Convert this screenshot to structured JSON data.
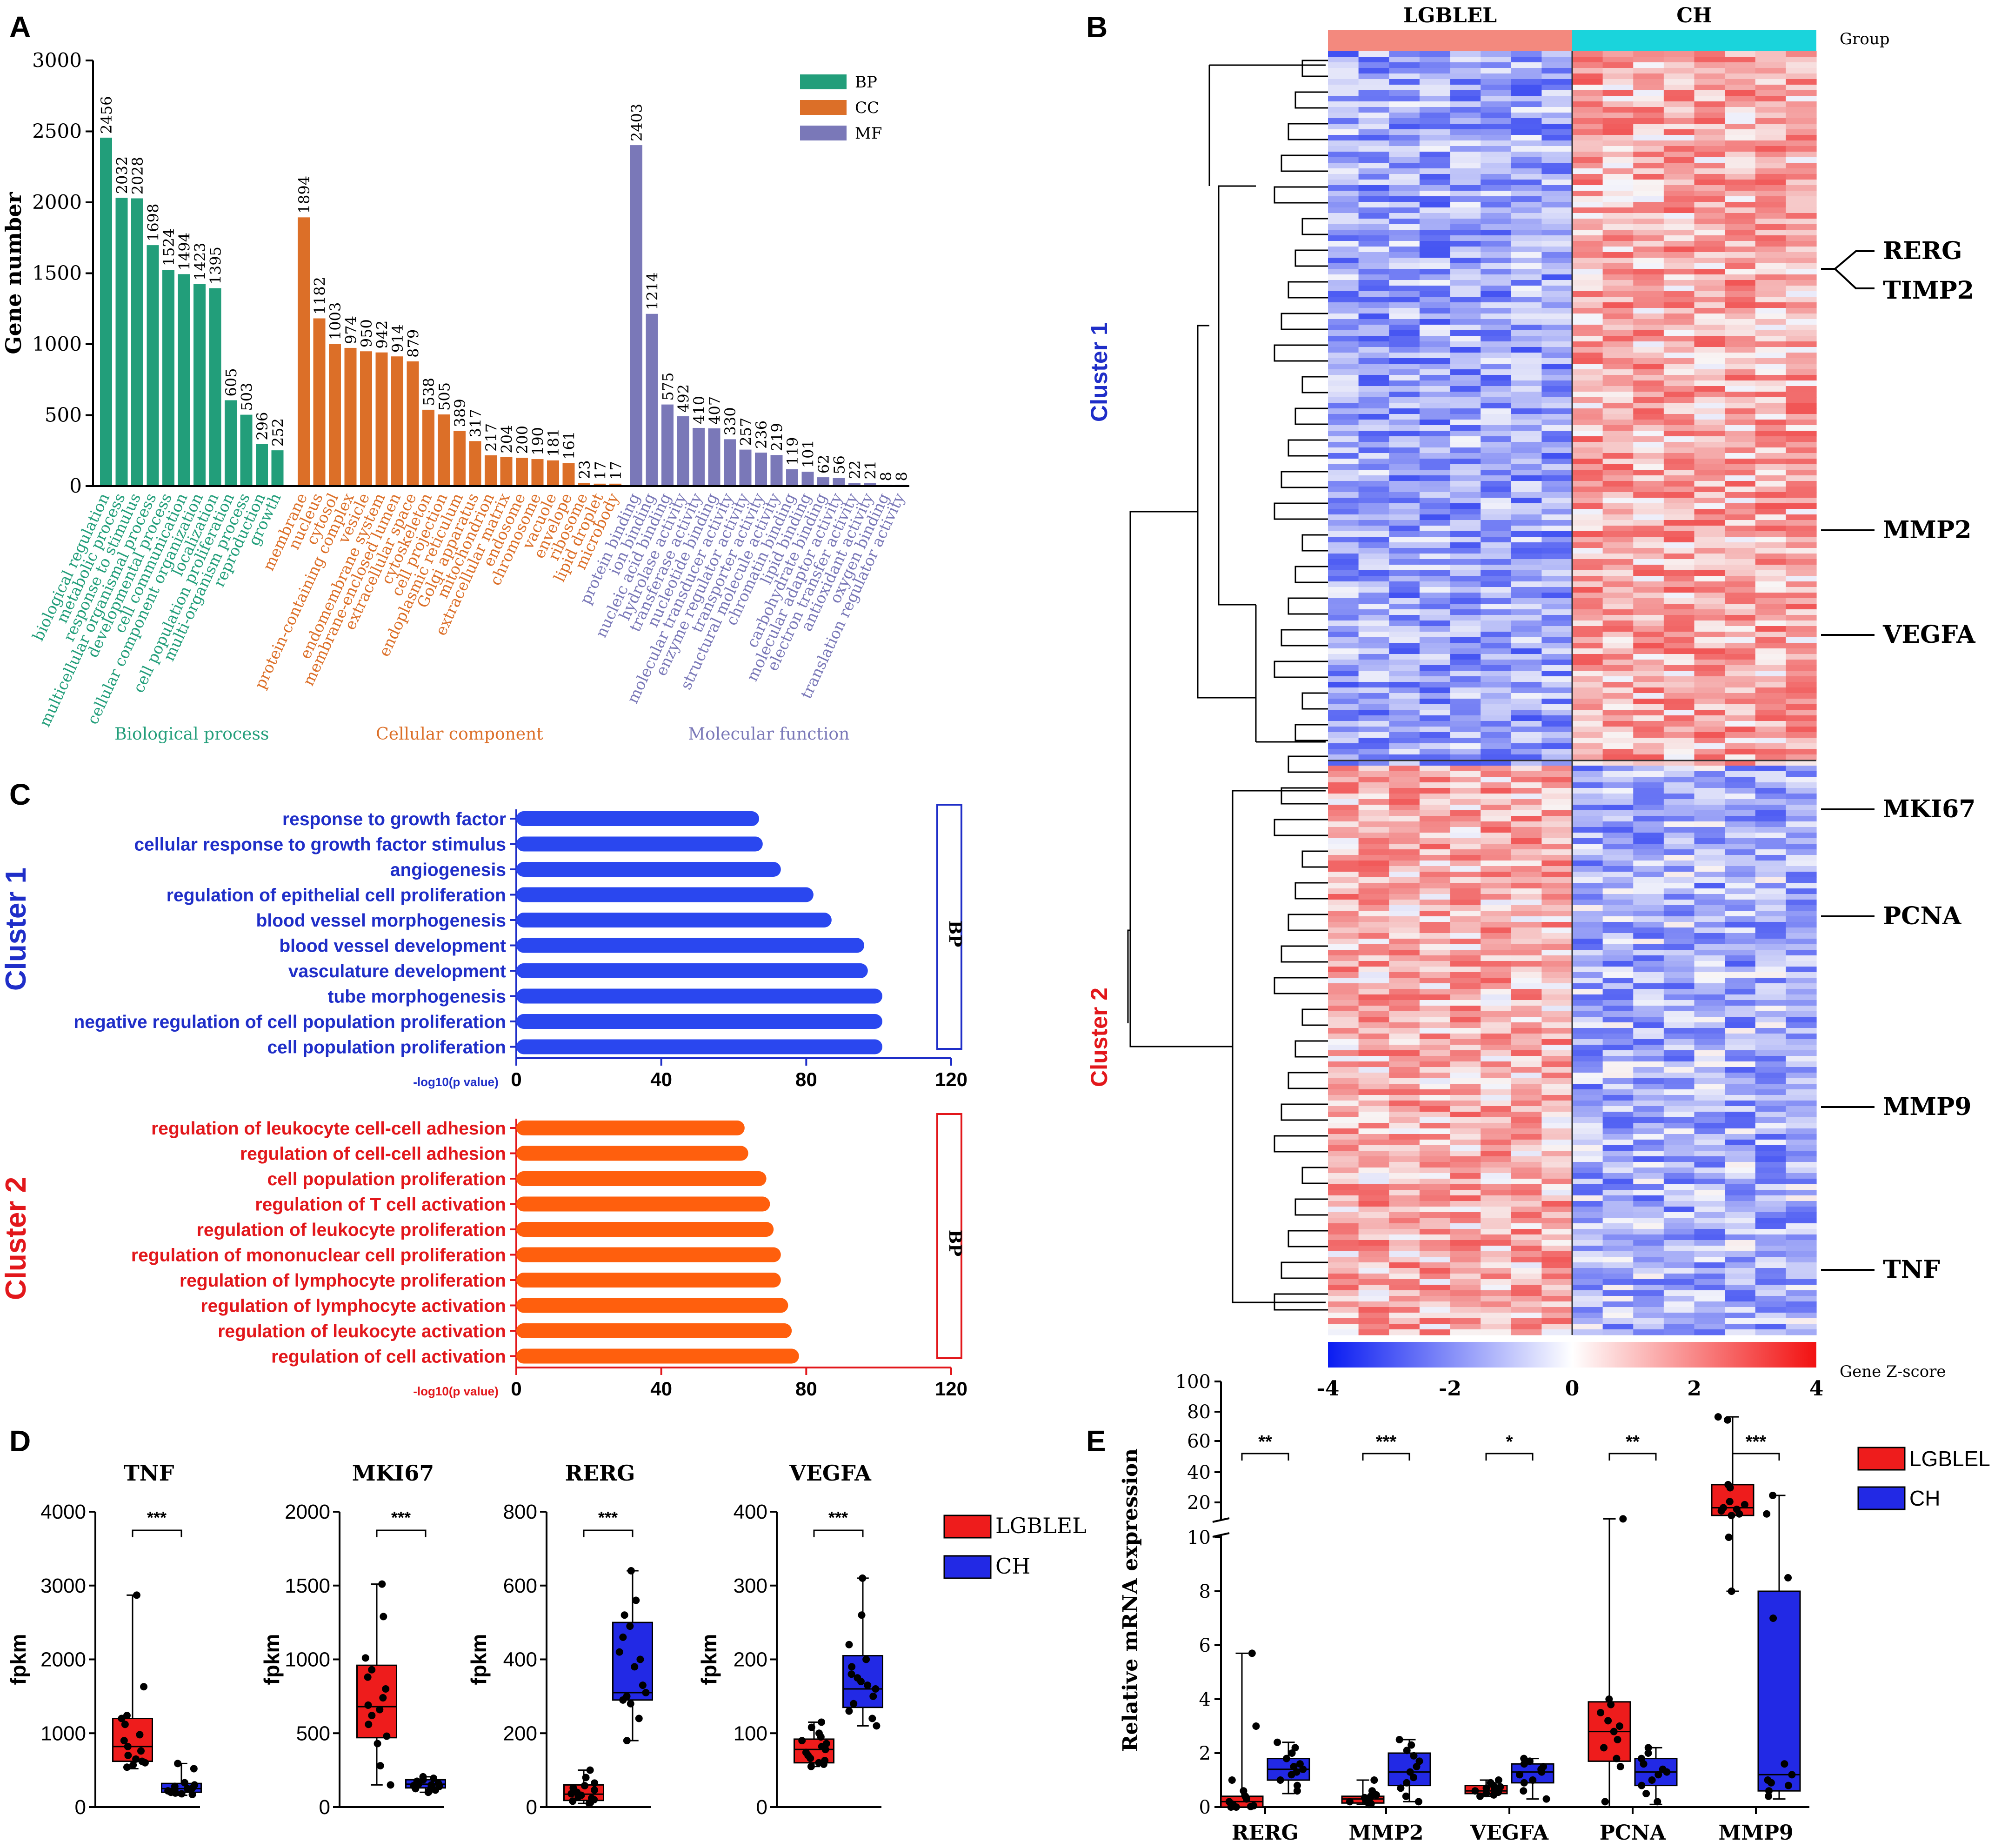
{
  "panel_labels": {
    "A": "A",
    "B": "B",
    "C": "C",
    "D": "D",
    "E": "E"
  },
  "colors": {
    "bp": "#229e7a",
    "cc": "#dc6f28",
    "mf": "#7a78b8",
    "cluster1": "#1f2ec8",
    "cluster2": "#e2171b",
    "bar1": "#2a47ef",
    "bar2": "#ff5f0d",
    "lgblel": "#ee1c1c",
    "ch": "#2229e5",
    "group_lgblel": "#f3897e",
    "group_ch": "#1ad4dc"
  },
  "chart_data": [
    {
      "panel": "A",
      "type": "bar",
      "ylabel": "Gene number",
      "ylim": [
        0,
        3000
      ],
      "yticks": [
        "0",
        "500",
        "1000",
        "1500",
        "2000",
        "2500",
        "3000"
      ],
      "legend": [
        "BP",
        "CC",
        "MF"
      ],
      "groups": [
        {
          "key": "bp",
          "name": "Biological process",
          "categories": [
            "biological regulation",
            "metabolic process",
            "response to stimulus",
            "multicellular organismal process",
            "developmental process",
            "cell communication",
            "cellular component organization",
            "localization",
            "cell population proliferation",
            "multi-organism process",
            "reproduction",
            "growth"
          ],
          "values": [
            2456,
            2032,
            2028,
            1698,
            1524,
            1494,
            1423,
            1395,
            605,
            503,
            296,
            252
          ]
        },
        {
          "key": "cc",
          "name": "Cellular component",
          "categories": [
            "membrane",
            "nucleus",
            "cytosol",
            "protein-containing complex",
            "vesicle",
            "endomembrane system",
            "membrane-enclosed lumen",
            "extracellular space",
            "cytoskeleton",
            "cell projection",
            "endoplasmic reticulum",
            "Golgi apparatus",
            "mitochondrion",
            "extracellular matrix",
            "endosome",
            "chromosome",
            "vacuole",
            "envelope",
            "ribosome",
            "lipid droplet",
            "microbody"
          ],
          "values": [
            1894,
            1182,
            1003,
            974,
            950,
            942,
            914,
            879,
            538,
            505,
            389,
            317,
            217,
            204,
            200,
            190,
            181,
            161,
            23,
            17,
            17
          ]
        },
        {
          "key": "mf",
          "name": "Molecular function",
          "categories": [
            "protein binding",
            "ion binding",
            "nucleic acid binding",
            "hydrolase activity",
            "transferase activity",
            "nucleotide binding",
            "molecular transducer activity",
            "enzyme regulator activity",
            "transporter activity",
            "structural molecule activity",
            "chromatin binding",
            "lipid binding",
            "carbohydrate binding",
            "molecular adaptor activity",
            "electron transfer activity",
            "antioxidant activity",
            "oxygen binding",
            "translation regulator activity"
          ],
          "values": [
            2403,
            1214,
            575,
            492,
            410,
            407,
            330,
            257,
            236,
            219,
            119,
            101,
            62,
            56,
            22,
            21,
            8,
            8
          ]
        }
      ]
    },
    {
      "panel": "B",
      "type": "heatmap",
      "groups": [
        "LGBLEL",
        "CH"
      ],
      "group_label": "Group",
      "clusters": [
        "Cluster 1",
        "Cluster 2"
      ],
      "genes": [
        "RERG",
        "TIMP2",
        "MMP2",
        "VEGFA",
        "MKI67",
        "PCNA",
        "MMP9",
        "TNF"
      ],
      "colorbar_label": "Gene Z-score",
      "colorbar_ticks": [
        "-4",
        "-2",
        "0",
        "2",
        "4"
      ],
      "zlim": [
        -4,
        4
      ]
    },
    {
      "panel": "C",
      "type": "bar",
      "orientation": "horizontal",
      "xlabel": "-log10(p value)",
      "xlim": [
        0,
        120
      ],
      "xticks": [
        "0",
        "40",
        "80",
        "120"
      ],
      "facet_label": "BP",
      "clusters": [
        {
          "name": "Cluster 1",
          "terms": [
            "response to growth factor",
            "cellular response to growth factor stimulus",
            "angiogenesis",
            "regulation of epithelial cell proliferation",
            "blood vessel morphogenesis",
            "blood vessel development",
            "vasculature development",
            "tube morphogenesis",
            "negative regulation of cell population proliferation",
            "cell population proliferation"
          ],
          "values": [
            67,
            68,
            73,
            82,
            87,
            96,
            97,
            101,
            101,
            101
          ]
        },
        {
          "name": "Cluster 2",
          "terms": [
            "regulation of leukocyte cell-cell adhesion",
            "regulation of cell-cell adhesion",
            "cell population proliferation",
            "regulation of T cell activation",
            "regulation of leukocyte proliferation",
            "regulation of mononuclear cell proliferation",
            "regulation of lymphocyte proliferation",
            "regulation of lymphocyte activation",
            "regulation of leukocyte activation",
            "regulation of cell activation"
          ],
          "values": [
            63,
            64,
            69,
            70,
            71,
            73,
            73,
            75,
            76,
            78
          ]
        }
      ]
    },
    {
      "panel": "D",
      "type": "box",
      "ylabel": "fpkm",
      "legend": [
        "LGBLEL",
        "CH"
      ],
      "plots": [
        {
          "title": "TNF",
          "ylim": [
            0,
            4000
          ],
          "yticks": [
            "0",
            "1000",
            "2000",
            "3000",
            "4000"
          ],
          "sig": "***",
          "LGBLEL": {
            "min": 520,
            "q1": 620,
            "median": 820,
            "q3": 1200,
            "max": 2870,
            "points": [
              2870,
              1630,
              1240,
              1200,
              1120,
              980,
              900,
              820,
              760,
              700,
              650,
              620,
              600,
              570,
              540
            ]
          },
          "CH": {
            "min": 160,
            "q1": 200,
            "median": 250,
            "q3": 320,
            "max": 590,
            "points": [
              590,
              520,
              330,
              300,
              280,
              260,
              250,
              240,
              230,
              220,
              210,
              200,
              190,
              180,
              170
            ]
          }
        },
        {
          "title": "MKI67",
          "ylim": [
            0,
            2000
          ],
          "yticks": [
            "0",
            "500",
            "1000",
            "1500",
            "2000"
          ],
          "sig": "***",
          "LGBLEL": {
            "min": 150,
            "q1": 470,
            "median": 680,
            "q3": 960,
            "max": 1510,
            "points": [
              1510,
              1290,
              1010,
              930,
              880,
              800,
              740,
              690,
              660,
              620,
              560,
              480,
              430,
              280,
              150
            ]
          },
          "CH": {
            "min": 100,
            "q1": 130,
            "median": 155,
            "q3": 185,
            "max": 205,
            "points": [
              205,
              195,
              185,
              175,
              170,
              160,
              155,
              150,
              145,
              140,
              135,
              125,
              115,
              105,
              100
            ]
          }
        },
        {
          "title": "RERG",
          "ylim": [
            0,
            800
          ],
          "yticks": [
            "0",
            "200",
            "400",
            "600",
            "800"
          ],
          "sig": "***",
          "LGBLEL": {
            "min": 10,
            "q1": 18,
            "median": 35,
            "q3": 60,
            "max": 100,
            "points": [
              100,
              80,
              65,
              58,
              52,
              46,
              40,
              36,
              32,
              28,
              24,
              20,
              16,
              12,
              10
            ]
          },
          "CH": {
            "min": 180,
            "q1": 290,
            "median": 310,
            "q3": 500,
            "max": 640,
            "points": [
              640,
              560,
              520,
              490,
              460,
              420,
              400,
              380,
              330,
              310,
              300,
              290,
              280,
              240,
              180
            ]
          }
        },
        {
          "title": "VEGFA",
          "ylim": [
            0,
            400
          ],
          "yticks": [
            "0",
            "100",
            "200",
            "300",
            "400"
          ],
          "sig": "***",
          "LGBLEL": {
            "min": 55,
            "q1": 60,
            "median": 78,
            "q3": 92,
            "max": 115,
            "points": [
              115,
              108,
              100,
              95,
              90,
              86,
              82,
              78,
              74,
              70,
              66,
              63,
              60,
              58,
              55
            ]
          },
          "CH": {
            "min": 110,
            "q1": 135,
            "median": 160,
            "q3": 205,
            "max": 310,
            "points": [
              310,
              260,
              220,
              200,
              190,
              180,
              175,
              170,
              165,
              160,
              150,
              140,
              130,
              120,
              110
            ]
          }
        }
      ]
    },
    {
      "panel": "E",
      "type": "box",
      "ylabel": "Relative mRNA expression",
      "yticks_lower": [
        "0",
        "2",
        "4",
        "6",
        "8",
        "10"
      ],
      "yticks_upper": [
        "20",
        "40",
        "60",
        "80",
        "100"
      ],
      "axis_break": [
        10,
        10
      ],
      "legend": [
        "LGBLEL",
        "CH"
      ],
      "categories": [
        "RERG",
        "MMP2",
        "VEGFA",
        "PCNA",
        "MMP9"
      ],
      "sig": [
        "**",
        "***",
        "*",
        "**",
        "***"
      ],
      "LGBLEL": [
        {
          "min": 0.0,
          "q1": 0.0,
          "median": 0.2,
          "q3": 0.4,
          "max": 5.7,
          "points": [
            5.7,
            3.0,
            1.0,
            0.6,
            0.4,
            0.3,
            0.2,
            0.1,
            0.05,
            0.02,
            0.0,
            0.0
          ]
        },
        {
          "min": 0.1,
          "q1": 0.15,
          "median": 0.3,
          "q3": 0.4,
          "max": 1.0,
          "points": [
            1.0,
            0.6,
            0.45,
            0.4,
            0.35,
            0.3,
            0.25,
            0.2,
            0.15,
            0.12,
            0.1
          ]
        },
        {
          "min": 0.4,
          "q1": 0.5,
          "median": 0.6,
          "q3": 0.8,
          "max": 1.0,
          "points": [
            1.0,
            0.9,
            0.8,
            0.75,
            0.7,
            0.65,
            0.6,
            0.55,
            0.5,
            0.45,
            0.4
          ]
        },
        {
          "min": 0.0,
          "q1": 1.7,
          "median": 2.8,
          "q3": 3.9,
          "max": 10.8,
          "points": [
            10.8,
            4.0,
            3.8,
            3.5,
            3.2,
            3.0,
            2.8,
            2.5,
            2.2,
            1.8,
            1.5,
            0.2
          ]
        },
        {
          "min": 8,
          "q1": 13,
          "median": 18,
          "q3": 33,
          "max": 77,
          "points": [
            77,
            75,
            33,
            31,
            22,
            20,
            18,
            17,
            16,
            14,
            13,
            10,
            8
          ]
        }
      ],
      "CH": [
        {
          "min": 0.5,
          "q1": 1.0,
          "median": 1.4,
          "q3": 1.8,
          "max": 2.4,
          "points": [
            2.4,
            2.2,
            2.0,
            1.8,
            1.6,
            1.5,
            1.4,
            1.3,
            1.2,
            1.0,
            0.8,
            0.6
          ]
        },
        {
          "min": 0.2,
          "q1": 0.8,
          "median": 1.3,
          "q3": 2.0,
          "max": 2.5,
          "points": [
            2.5,
            2.3,
            2.1,
            1.9,
            1.7,
            1.5,
            1.3,
            1.1,
            0.9,
            0.7,
            0.4,
            0.2
          ]
        },
        {
          "min": 0.3,
          "q1": 0.9,
          "median": 1.3,
          "q3": 1.6,
          "max": 1.8,
          "points": [
            1.8,
            1.7,
            1.6,
            1.5,
            1.4,
            1.3,
            1.2,
            1.0,
            0.9,
            0.6,
            0.3
          ]
        },
        {
          "min": 0.1,
          "q1": 0.8,
          "median": 1.3,
          "q3": 1.8,
          "max": 2.2,
          "points": [
            2.2,
            2.0,
            1.8,
            1.6,
            1.4,
            1.3,
            1.2,
            1.0,
            0.8,
            0.5,
            0.2
          ]
        },
        {
          "min": 0.3,
          "q1": 0.6,
          "median": 1.2,
          "q3": 8.0,
          "max": 26,
          "points": [
            26,
            14,
            8.5,
            7.0,
            1.6,
            1.2,
            1.0,
            0.9,
            0.8,
            0.6,
            0.4
          ]
        }
      ]
    }
  ]
}
